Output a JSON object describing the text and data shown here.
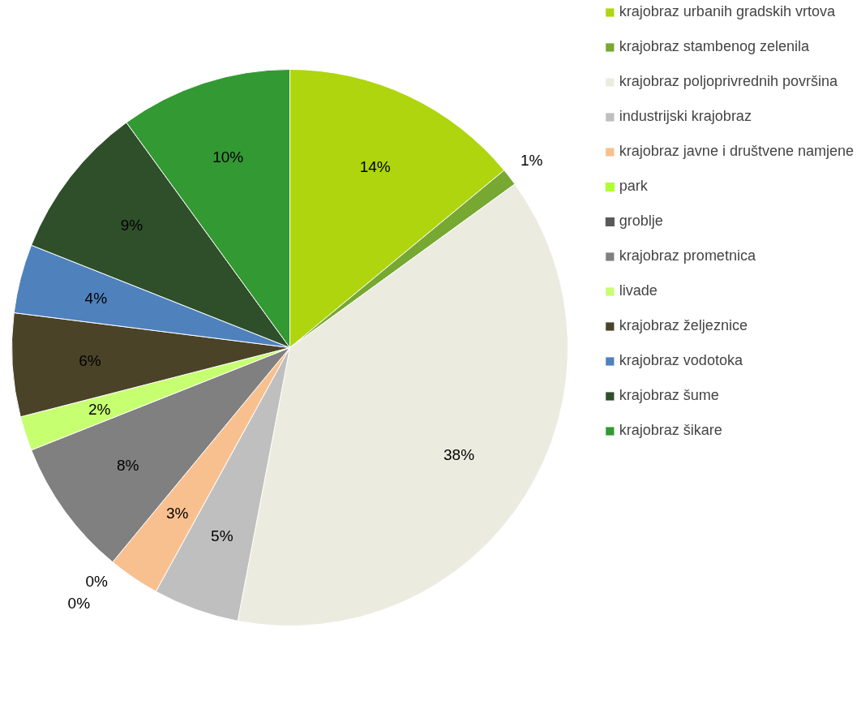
{
  "chart_data": {
    "type": "pie",
    "categories": [
      "krajobraz urbanih gradskih vrtova",
      "krajobraz stambenog zelenila",
      "krajobraz poljoprivrednih površina",
      "industrijski krajobraz",
      "krajobraz javne i društvene namjene",
      "park",
      "groblje",
      "krajobraz prometnica",
      "livade",
      "krajobraz željeznice",
      "krajobraz vodotoka",
      "krajobraz šume",
      "krajobraz šikare"
    ],
    "values": [
      14,
      1,
      38,
      5,
      3,
      0,
      0,
      8,
      2,
      6,
      4,
      9,
      10
    ],
    "value_labels": [
      "14%",
      "1%",
      "38%",
      "5%",
      "3%",
      "0%",
      "0%",
      "8%",
      "2%",
      "6%",
      "4%",
      "9%",
      "10%"
    ],
    "colors": [
      "#afd50f",
      "#77a832",
      "#ebebdf",
      "#bfbfbf",
      "#f9c08f",
      "#adff2f",
      "#595959",
      "#808080",
      "#c6ff70",
      "#4a4327",
      "#4f81bd",
      "#2e4f2a",
      "#339933"
    ],
    "legend": "top right"
  }
}
